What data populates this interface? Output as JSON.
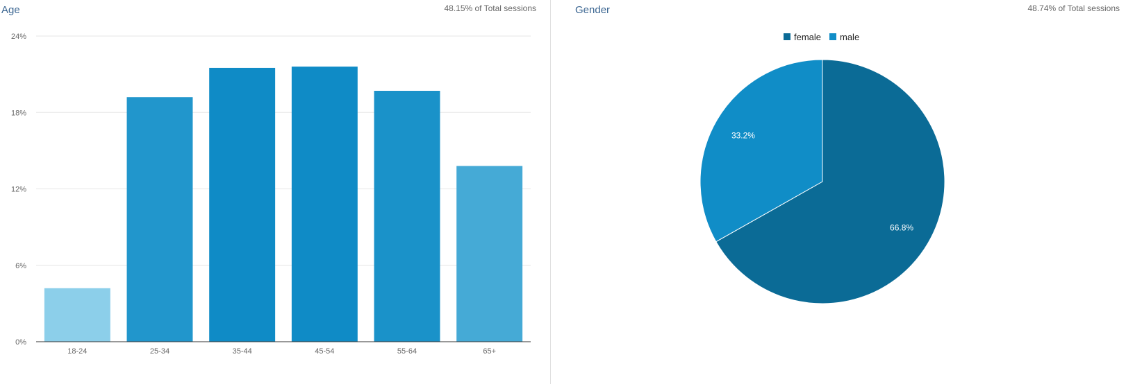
{
  "age": {
    "title": "Age",
    "meta": "48.15% of Total sessions"
  },
  "gender": {
    "title": "Gender",
    "meta": "48.74% of Total sessions"
  },
  "chart_data": [
    {
      "type": "bar",
      "title": "Age",
      "categories": [
        "18-24",
        "25-34",
        "35-44",
        "45-54",
        "55-64",
        "65+"
      ],
      "values": [
        4.2,
        19.2,
        21.5,
        21.6,
        19.7,
        13.8
      ],
      "colors": [
        "#8ccfea",
        "#2196cc",
        "#0f8bc6",
        "#0f8bc6",
        "#1a92c9",
        "#45aad6"
      ],
      "yticks": [
        "0%",
        "6%",
        "12%",
        "18%",
        "24%"
      ],
      "ylim": [
        0,
        24
      ],
      "grid": true
    },
    {
      "type": "pie",
      "title": "Gender",
      "legend_position": "top",
      "slices": [
        {
          "label": "female",
          "value": 66.8,
          "display": "66.8%",
          "color": "#0b6b96"
        },
        {
          "label": "male",
          "value": 33.2,
          "display": "33.2%",
          "color": "#108dc7"
        }
      ]
    }
  ]
}
